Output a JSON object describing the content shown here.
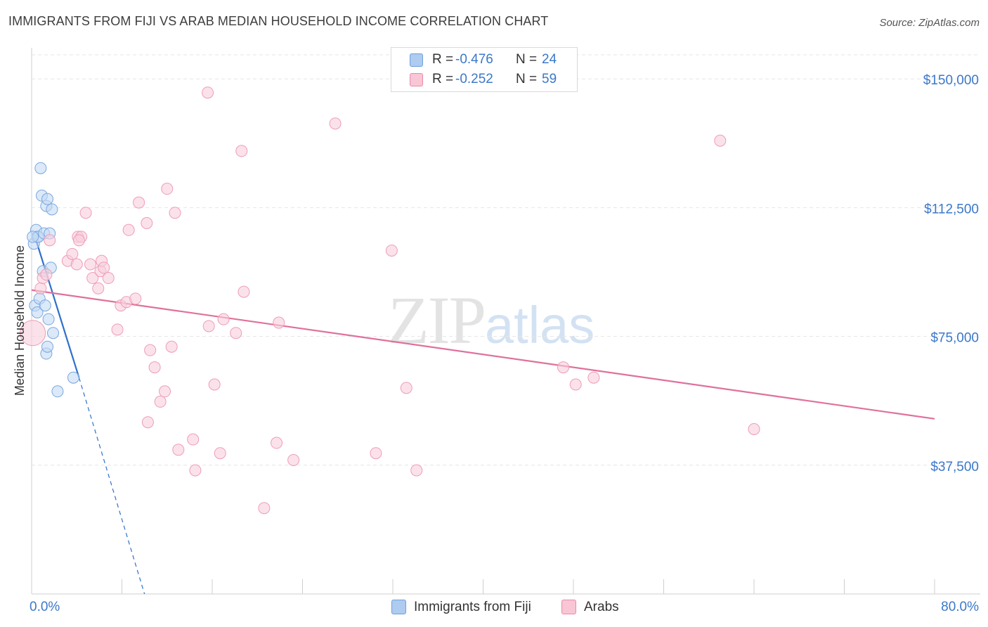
{
  "header": {
    "title": "IMMIGRANTS FROM FIJI VS ARAB MEDIAN HOUSEHOLD INCOME CORRELATION CHART",
    "source": "Source: ZipAtlas.com"
  },
  "watermark": {
    "zip": "ZIP",
    "atlas": "atlas"
  },
  "stats": [
    {
      "r_label": "R =",
      "r_value": "-0.476",
      "n_label": "N =",
      "n_value": "24",
      "color": "#aecbf0",
      "border": "#6f9fdc"
    },
    {
      "r_label": "R =",
      "r_value": "-0.252",
      "n_label": "N =",
      "n_value": "59",
      "color": "#f8c6d5",
      "border": "#e98aa8"
    }
  ],
  "legend": [
    {
      "label": "Immigrants from Fiji",
      "color": "#aecbf0",
      "border": "#6f9fdc"
    },
    {
      "label": "Arabs",
      "color": "#f8c6d5",
      "border": "#e98aa8"
    }
  ],
  "chart_data": {
    "type": "scatter",
    "title": "IMMIGRANTS FROM FIJI VS ARAB MEDIAN HOUSEHOLD INCOME CORRELATION CHART",
    "xlabel": "",
    "ylabel": "Median Household Income",
    "xlim": [
      0,
      80
    ],
    "ylim": [
      0,
      157000
    ],
    "x_tick_labels": [
      "0.0%",
      "80.0%"
    ],
    "y_ticks": [
      37500,
      75000,
      112500,
      150000
    ],
    "y_tick_labels": [
      "$37,500",
      "$75,000",
      "$112,500",
      "$150,000"
    ],
    "grid": true,
    "legend_position": "bottom",
    "series": [
      {
        "name": "Immigrants from Fiji",
        "color": "#7aa7e0",
        "line_color": "#2f6fcc",
        "points": [
          [
            0.2,
            102000
          ],
          [
            0.3,
            84000
          ],
          [
            0.4,
            106000
          ],
          [
            0.5,
            104000
          ],
          [
            0.5,
            82000
          ],
          [
            0.6,
            104000
          ],
          [
            0.7,
            86000
          ],
          [
            0.8,
            124000
          ],
          [
            0.9,
            116000
          ],
          [
            1.0,
            94000
          ],
          [
            1.1,
            105000
          ],
          [
            1.2,
            84000
          ],
          [
            1.3,
            113000
          ],
          [
            1.3,
            70000
          ],
          [
            1.4,
            115000
          ],
          [
            1.4,
            72000
          ],
          [
            1.5,
            80000
          ],
          [
            1.6,
            105000
          ],
          [
            1.7,
            95000
          ],
          [
            1.8,
            112000
          ],
          [
            1.9,
            76000
          ],
          [
            2.3,
            59000
          ],
          [
            3.7,
            63000
          ],
          [
            0.1,
            104000
          ]
        ],
        "trend": {
          "x": [
            0.3,
            4.2
          ],
          "y": [
            104000,
            63000
          ],
          "dashed_to": [
            10.0,
            0
          ]
        }
      },
      {
        "name": "Arabs",
        "color": "#f4a9c0",
        "line_color": "#e0709a",
        "points": [
          [
            0.1,
            76000
          ],
          [
            0.8,
            89000
          ],
          [
            1.0,
            92000
          ],
          [
            1.3,
            93000
          ],
          [
            1.6,
            103000
          ],
          [
            3.2,
            97000
          ],
          [
            3.6,
            99000
          ],
          [
            4.0,
            96000
          ],
          [
            4.1,
            104000
          ],
          [
            4.4,
            104000
          ],
          [
            4.2,
            103000
          ],
          [
            4.8,
            111000
          ],
          [
            5.2,
            96000
          ],
          [
            5.4,
            92000
          ],
          [
            5.9,
            89000
          ],
          [
            6.1,
            94000
          ],
          [
            6.2,
            97000
          ],
          [
            6.4,
            95000
          ],
          [
            6.8,
            92000
          ],
          [
            7.6,
            77000
          ],
          [
            7.9,
            84000
          ],
          [
            8.4,
            85000
          ],
          [
            8.6,
            106000
          ],
          [
            9.2,
            86000
          ],
          [
            9.5,
            114000
          ],
          [
            10.2,
            108000
          ],
          [
            10.3,
            50000
          ],
          [
            10.5,
            71000
          ],
          [
            10.9,
            66000
          ],
          [
            11.4,
            56000
          ],
          [
            11.8,
            59000
          ],
          [
            12.0,
            118000
          ],
          [
            12.4,
            72000
          ],
          [
            12.7,
            111000
          ],
          [
            13.0,
            42000
          ],
          [
            14.3,
            45000
          ],
          [
            14.5,
            36000
          ],
          [
            15.6,
            146000
          ],
          [
            15.7,
            78000
          ],
          [
            16.2,
            61000
          ],
          [
            16.7,
            41000
          ],
          [
            17.0,
            80000
          ],
          [
            18.1,
            76000
          ],
          [
            18.6,
            129000
          ],
          [
            18.8,
            88000
          ],
          [
            20.6,
            25000
          ],
          [
            21.7,
            44000
          ],
          [
            21.9,
            79000
          ],
          [
            23.2,
            39000
          ],
          [
            26.9,
            137000
          ],
          [
            30.5,
            41000
          ],
          [
            31.9,
            100000
          ],
          [
            33.2,
            60000
          ],
          [
            34.1,
            36000
          ],
          [
            47.1,
            66000
          ],
          [
            48.2,
            61000
          ],
          [
            49.8,
            63000
          ],
          [
            61.0,
            132000
          ],
          [
            64.0,
            48000
          ]
        ],
        "trend": {
          "x": [
            0.0,
            80.0
          ],
          "y": [
            88500,
            51000
          ]
        }
      }
    ]
  }
}
